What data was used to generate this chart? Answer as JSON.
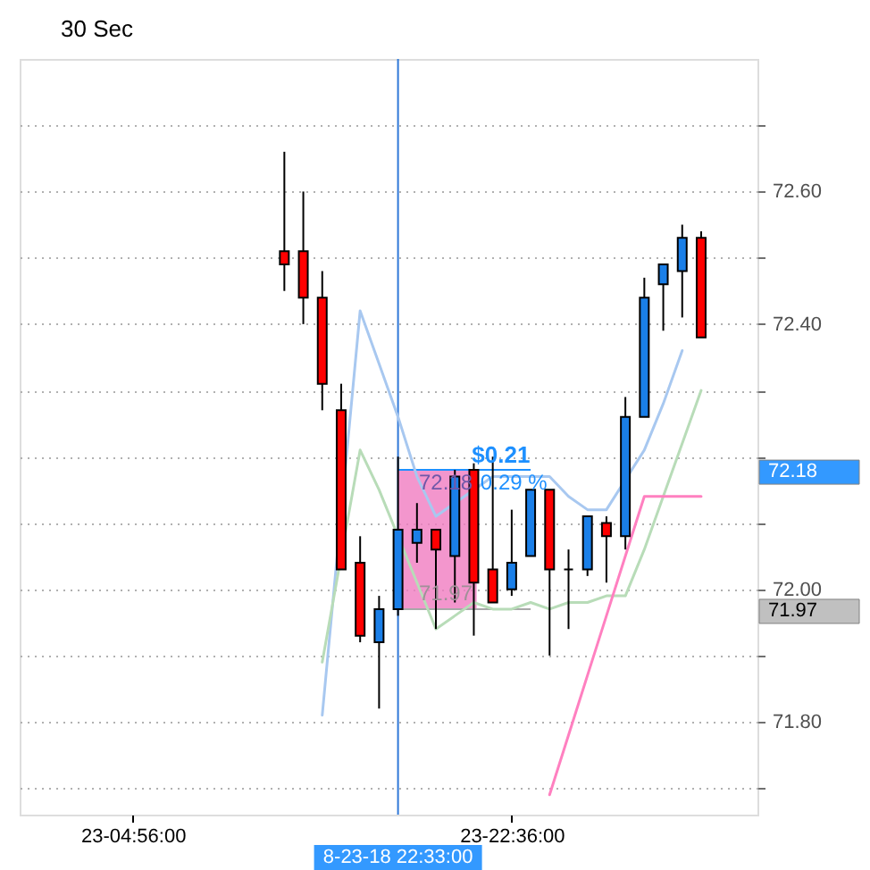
{
  "chart_data": {
    "type": "candlestick",
    "title": "30 Sec",
    "categories": [
      null,
      null,
      null,
      null,
      null,
      "23-04:56:00",
      null,
      null,
      null,
      null,
      null,
      null,
      null,
      null,
      null,
      null,
      null,
      null,
      null,
      "8-23-18 22:33:00",
      null,
      null,
      null,
      null,
      null,
      "23-22:36:00",
      null,
      null,
      null,
      null,
      null,
      null,
      null,
      null,
      null,
      null,
      null,
      null
    ],
    "ohlc": [
      null,
      null,
      null,
      null,
      null,
      null,
      null,
      null,
      null,
      null,
      null,
      null,
      null,
      [
        72.51,
        72.66,
        72.45,
        72.49
      ],
      [
        72.51,
        72.6,
        72.4,
        72.44
      ],
      [
        72.44,
        72.48,
        72.27,
        72.31
      ],
      [
        72.27,
        72.31,
        72.03,
        72.03
      ],
      [
        72.04,
        72.08,
        71.92,
        71.93
      ],
      [
        71.92,
        71.99,
        71.82,
        71.97
      ],
      [
        71.97,
        72.2,
        71.96,
        72.09
      ],
      [
        72.07,
        72.13,
        72.04,
        72.09
      ],
      [
        72.09,
        72.09,
        71.94,
        72.06
      ],
      [
        72.05,
        72.18,
        71.98,
        72.17
      ],
      [
        72.18,
        72.19,
        71.93,
        72.01
      ],
      [
        72.03,
        72.2,
        71.98,
        71.98
      ],
      [
        72.0,
        72.12,
        71.99,
        72.04
      ],
      [
        72.05,
        72.15,
        72.05,
        72.15
      ],
      [
        72.15,
        72.15,
        71.9,
        72.03
      ],
      [
        72.03,
        72.06,
        71.94,
        72.03
      ],
      [
        72.03,
        72.11,
        72.02,
        72.11
      ],
      [
        72.1,
        72.11,
        72.01,
        72.08
      ],
      [
        72.08,
        72.29,
        72.06,
        72.26
      ],
      [
        72.26,
        72.47,
        72.26,
        72.44
      ],
      [
        72.46,
        72.49,
        72.39,
        72.49
      ],
      [
        72.48,
        72.55,
        72.41,
        72.53
      ],
      [
        72.53,
        72.54,
        72.38,
        72.38
      ],
      null,
      null
    ],
    "colors": [
      null,
      null,
      null,
      null,
      null,
      null,
      null,
      null,
      null,
      null,
      null,
      null,
      null,
      "#ff0000",
      "#ff0000",
      "#ff0000",
      "#ff0000",
      "#ff0000",
      "#1a7fe8",
      "#1a7fe8",
      "#1a7fe8",
      "#ff0000",
      "#1a7fe8",
      "#ff0000",
      "#ff0000",
      "#1a7fe8",
      "#1a7fe8",
      "#ff0000",
      "#000000",
      "#1a7fe8",
      "#ff0000",
      "#1a7fe8",
      "#1a7fe8",
      "#1a7fe8",
      "#1a7fe8",
      "#ff0000",
      null,
      null
    ],
    "series": [
      {
        "type": "line",
        "color": "#a8c8f0",
        "values": [
          null,
          null,
          null,
          null,
          null,
          null,
          null,
          null,
          null,
          null,
          null,
          null,
          null,
          null,
          null,
          71.81,
          null,
          72.42,
          72.34,
          72.26,
          72.17,
          72.11,
          null,
          null,
          72.17,
          72.17,
          72.17,
          72.17,
          72.14,
          72.12,
          72.12,
          null,
          72.21,
          72.28,
          72.36,
          null,
          null,
          null
        ]
      },
      {
        "type": "line",
        "color": "#b8dcb8",
        "values": [
          null,
          null,
          null,
          null,
          null,
          null,
          null,
          null,
          null,
          null,
          null,
          null,
          null,
          null,
          null,
          71.89,
          null,
          72.21,
          72.15,
          null,
          72.01,
          71.94,
          71.96,
          71.98,
          71.97,
          71.97,
          71.98,
          71.97,
          71.98,
          71.98,
          71.99,
          71.99,
          72.06,
          72.14,
          72.22,
          72.3,
          null,
          null
        ]
      },
      {
        "type": "line",
        "color": "#ff80c0",
        "values": [
          null,
          null,
          null,
          null,
          null,
          null,
          null,
          null,
          null,
          null,
          null,
          null,
          null,
          null,
          null,
          null,
          null,
          null,
          null,
          null,
          null,
          null,
          null,
          null,
          null,
          null,
          null,
          71.69,
          71.78,
          71.87,
          71.96,
          72.05,
          72.14,
          72.14,
          72.14,
          72.14,
          null,
          null
        ]
      }
    ],
    "ylim": [
      71.66,
      72.8
    ],
    "yticks": [
      {
        "value": 71.7,
        "label": null
      },
      {
        "value": 71.8,
        "label": "71.80"
      },
      {
        "value": 71.9,
        "label": null
      },
      {
        "value": 72.0,
        "label": "72.00"
      },
      {
        "value": 72.1,
        "label": null
      },
      {
        "value": 72.2,
        "label": null
      },
      {
        "value": 72.3,
        "label": null
      },
      {
        "value": 72.4,
        "label": "72.40"
      },
      {
        "value": 72.5,
        "label": null
      },
      {
        "value": 72.6,
        "label": "72.60"
      },
      {
        "value": 72.7,
        "label": null
      }
    ],
    "grid": "y",
    "ref_lines": [
      {
        "axis": "x",
        "value": "8-23-18 22:33:00",
        "color": "#2f78d8"
      }
    ],
    "bands": [
      {
        "axis": "y",
        "from": 71.97,
        "to": 72.18,
        "color": "#f07cc0"
      }
    ],
    "annotations": [
      {
        "text": "$0.21",
        "y": 72.18
      },
      {
        "text": "0.29 %",
        "y": 72.18
      },
      {
        "text": "72.18",
        "x": "8-23-18 22:33:00",
        "y": 72.18
      },
      {
        "text": "71.97",
        "x": "8-23-18 22:33:00",
        "y": 71.97
      },
      "72.18",
      "71.97"
    ]
  }
}
